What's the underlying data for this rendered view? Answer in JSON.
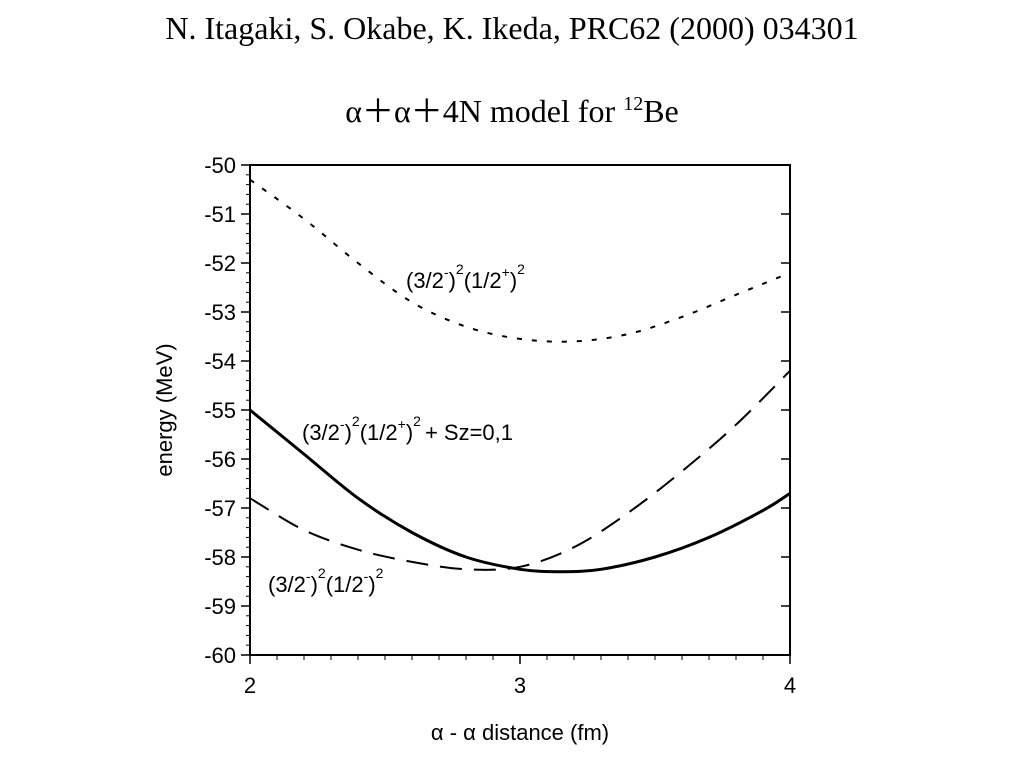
{
  "header": {
    "citation": "N. Itagaki, S. Okabe, K. Ikeda, PRC62 (2000) 034301",
    "model_prefix": "α＋α＋4N model for ",
    "model_mass_number": "12",
    "model_element": "Be"
  },
  "chart_data": {
    "type": "line",
    "title": "",
    "xlabel": "α - α distance (fm)",
    "ylabel": "energy (MeV)",
    "xlim": [
      2,
      4
    ],
    "ylim": [
      -60,
      -50
    ],
    "x_ticks": [
      2,
      3,
      4
    ],
    "y_ticks": [
      -50,
      -51,
      -52,
      -53,
      -54,
      -55,
      -56,
      -57,
      -58,
      -59,
      -60
    ],
    "grid": false,
    "series": [
      {
        "name": "(3/2⁻)²(1/2⁺)²",
        "style": "dotted",
        "x": [
          2.0,
          2.2,
          2.4,
          2.6,
          2.8,
          3.0,
          3.2,
          3.4,
          3.6,
          3.8,
          4.0
        ],
        "y": [
          -50.3,
          -51.1,
          -52.0,
          -52.8,
          -53.3,
          -53.55,
          -53.6,
          -53.45,
          -53.1,
          -52.65,
          -52.2
        ]
      },
      {
        "name": "(3/2⁻)²(1/2⁺)² + Sz=0,1",
        "style": "solid",
        "x": [
          2.0,
          2.2,
          2.4,
          2.6,
          2.8,
          3.0,
          3.15,
          3.3,
          3.5,
          3.7,
          3.9,
          4.0
        ],
        "y": [
          -55.0,
          -55.9,
          -56.8,
          -57.5,
          -58.0,
          -58.25,
          -58.3,
          -58.25,
          -58.0,
          -57.6,
          -57.05,
          -56.7
        ]
      },
      {
        "name": "(3/2⁻)²(1/2⁻)²",
        "style": "dashed",
        "x": [
          2.0,
          2.2,
          2.4,
          2.6,
          2.8,
          3.0,
          3.2,
          3.4,
          3.6,
          3.8,
          4.0
        ],
        "y": [
          -56.8,
          -57.45,
          -57.85,
          -58.1,
          -58.25,
          -58.2,
          -57.8,
          -57.1,
          -56.25,
          -55.3,
          -54.2
        ]
      }
    ],
    "annotations": {
      "upper": {
        "a": "(3/2",
        "a_sup": "-",
        "b": ")",
        "b_sup": "2",
        "c": "(1/2",
        "c_sup": "+",
        "d": ")",
        "d_sup": "2"
      },
      "middle": {
        "a": "(3/2",
        "a_sup": "-",
        "b": ")",
        "b_sup": "2",
        "c": "(1/2",
        "c_sup": "+",
        "d": ")",
        "d_sup": "2",
        "e": "+ Sz=0,1"
      },
      "lower": {
        "a": "(3/2",
        "a_sup": "-",
        "b": ")",
        "b_sup": "2",
        "c": "(1/2",
        "c_sup": "-",
        "d": ")",
        "d_sup": "2"
      }
    },
    "colors": {
      "line": "#000000",
      "axis": "#000000",
      "background": "#ffffff"
    }
  }
}
